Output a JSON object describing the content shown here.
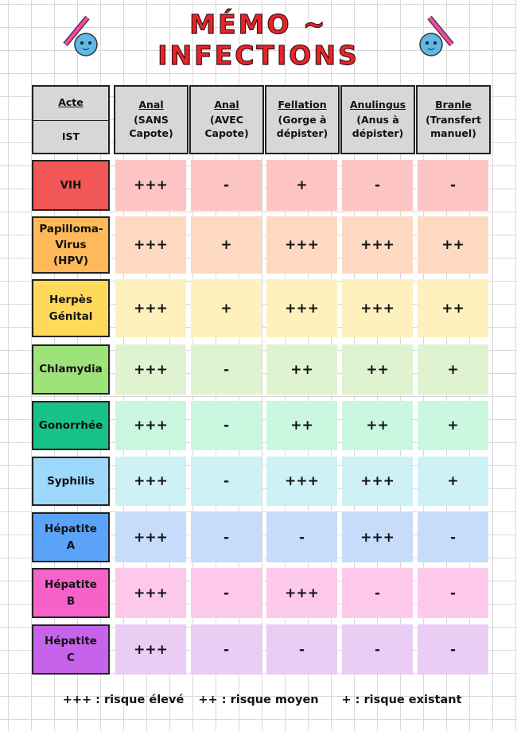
{
  "header": {
    "title": "MÉMO ~ INFECTIONS"
  },
  "table": {
    "corner": {
      "top": "Acte",
      "bottom": "IST"
    },
    "columns": [
      {
        "name": "Anal",
        "detail": "(SANS Capote)"
      },
      {
        "name": "Anal",
        "detail": "(AVEC Capote)"
      },
      {
        "name": "Fellation",
        "detail": "(Gorge à dépister)"
      },
      {
        "name": "Anulingus",
        "detail": "(Anus à dépister)"
      },
      {
        "name": "Branle",
        "detail": "(Transfert manuel)"
      }
    ],
    "rows": [
      {
        "name": "VIH",
        "values": [
          "+++",
          "-",
          "+",
          "-",
          "-"
        ]
      },
      {
        "name": "Papilloma-Virus (HPV)",
        "values": [
          "+++",
          "+",
          "+++",
          "+++",
          "++"
        ]
      },
      {
        "name": "Herpès Génital",
        "values": [
          "+++",
          "+",
          "+++",
          "+++",
          "++"
        ]
      },
      {
        "name": "Chlamydia",
        "values": [
          "+++",
          "-",
          "++",
          "++",
          "+"
        ]
      },
      {
        "name": "Gonorrhée",
        "values": [
          "+++",
          "-",
          "++",
          "++",
          "+"
        ]
      },
      {
        "name": "Syphilis",
        "values": [
          "+++",
          "-",
          "+++",
          "+++",
          "+"
        ]
      },
      {
        "name": "Hépatite A",
        "values": [
          "+++",
          "-",
          "-",
          "+++",
          "-"
        ]
      },
      {
        "name": "Hépatite B",
        "values": [
          "+++",
          "-",
          "+++",
          "-",
          "-"
        ]
      },
      {
        "name": "Hépatite C",
        "values": [
          "+++",
          "-",
          "-",
          "-",
          "-"
        ]
      }
    ]
  },
  "legend": [
    "+++ : risque élevé",
    "++ : risque moyen",
    "+ : risque existant"
  ]
}
